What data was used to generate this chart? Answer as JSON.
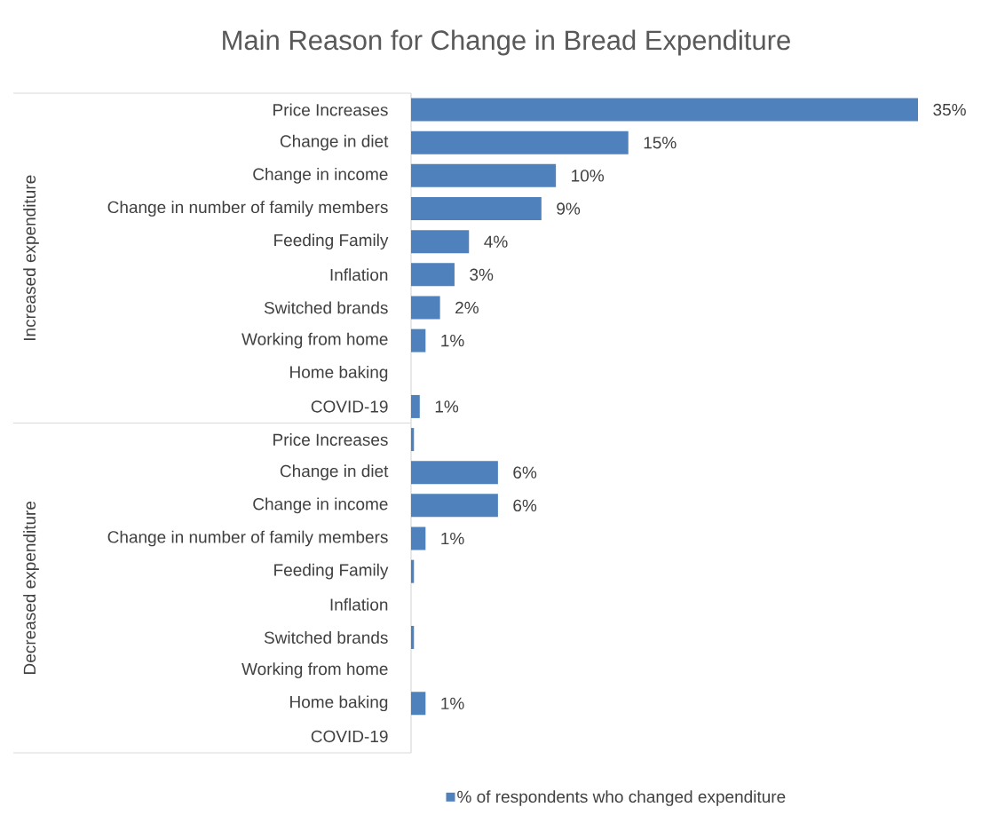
{
  "chart_data": {
    "type": "bar",
    "orientation": "horizontal",
    "title": "Main Reason for Change in Bread Expenditure",
    "categories": [
      "Price Increases",
      "Change in diet",
      "Change in income",
      "Change in number of family members",
      "Feeding Family",
      "Inflation",
      "Switched brands",
      "Working from home",
      "Home baking",
      "COVID-19",
      "Price Increases",
      "Change in diet",
      "Change in income",
      "Change in number of family members",
      "Feeding Family",
      "Inflation",
      "Switched brands",
      "Working from home",
      "Home baking",
      "COVID-19"
    ],
    "series": [
      {
        "name": "% of respondents who changed expenditure",
        "color": "#4f81bd",
        "values": [
          35,
          15,
          10,
          9,
          4,
          3,
          2,
          1,
          null,
          0.6,
          0.2,
          6,
          6,
          1,
          0.2,
          null,
          0.2,
          null,
          1,
          null
        ],
        "value_labels": [
          "35%",
          "15%",
          "10%",
          "9%",
          "4%",
          "3%",
          "2%",
          "1%",
          null,
          "1%",
          null,
          "6%",
          "6%",
          "1%",
          null,
          null,
          null,
          null,
          "1%",
          null
        ]
      }
    ],
    "annotations": [
      "Increased expenditure",
      "Decreased expenditure"
    ],
    "legend": "bottom"
  }
}
